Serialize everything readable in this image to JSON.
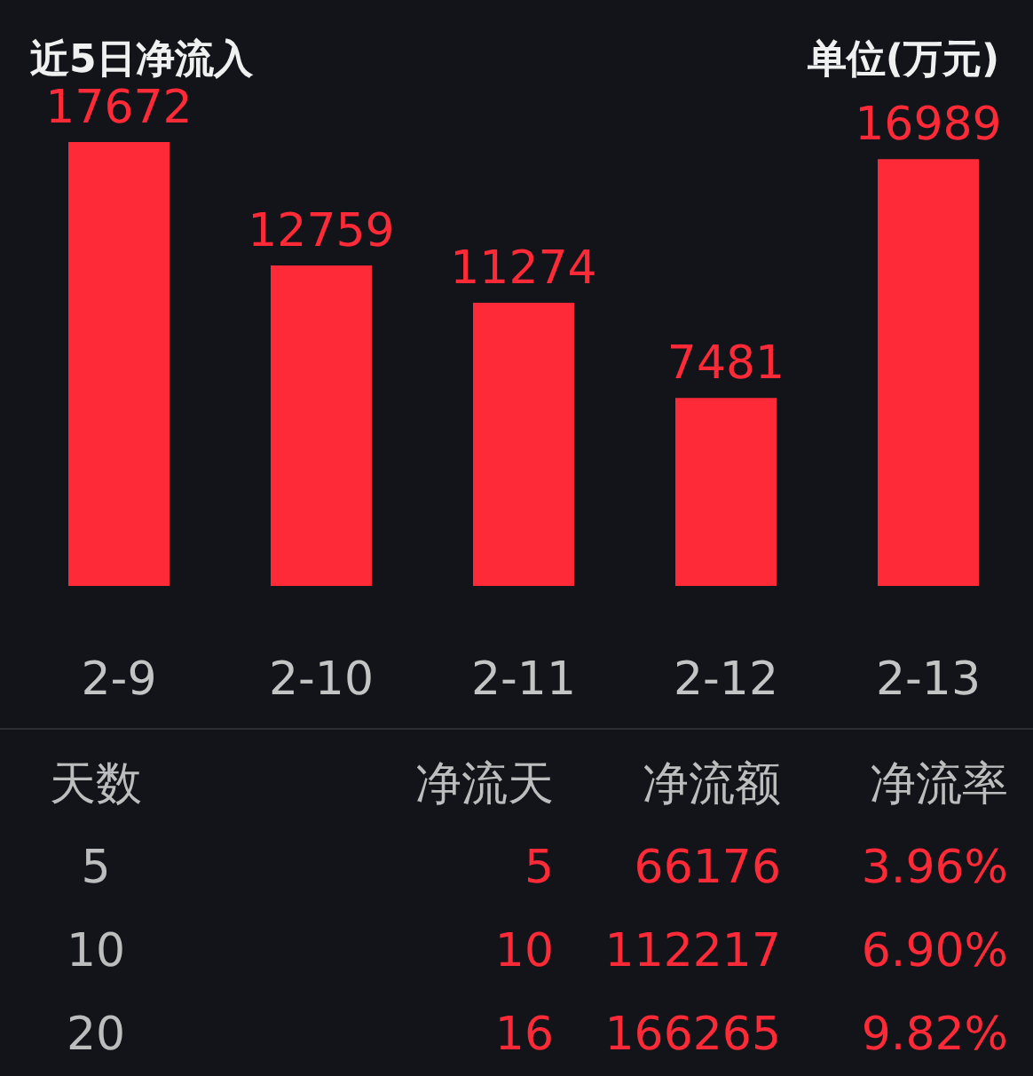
{
  "chart_data": [
    {
      "type": "bar",
      "title": "近5日净流入",
      "subtitle": "单位(万元)",
      "categories": [
        "2-9",
        "2-10",
        "2-11",
        "2-12",
        "2-13"
      ],
      "values": [
        17672,
        12759,
        11274,
        7481,
        16989
      ],
      "color": "#fe2a38",
      "data_labels": true
    },
    {
      "type": "other",
      "annotations": [
        "天数",
        "净流天",
        "净流额",
        "净流率",
        "5",
        "5",
        "66176",
        "3.96%",
        "10",
        "10",
        "112217",
        "6.90%",
        "20",
        "16",
        "166265",
        "9.82%"
      ]
    }
  ]
}
